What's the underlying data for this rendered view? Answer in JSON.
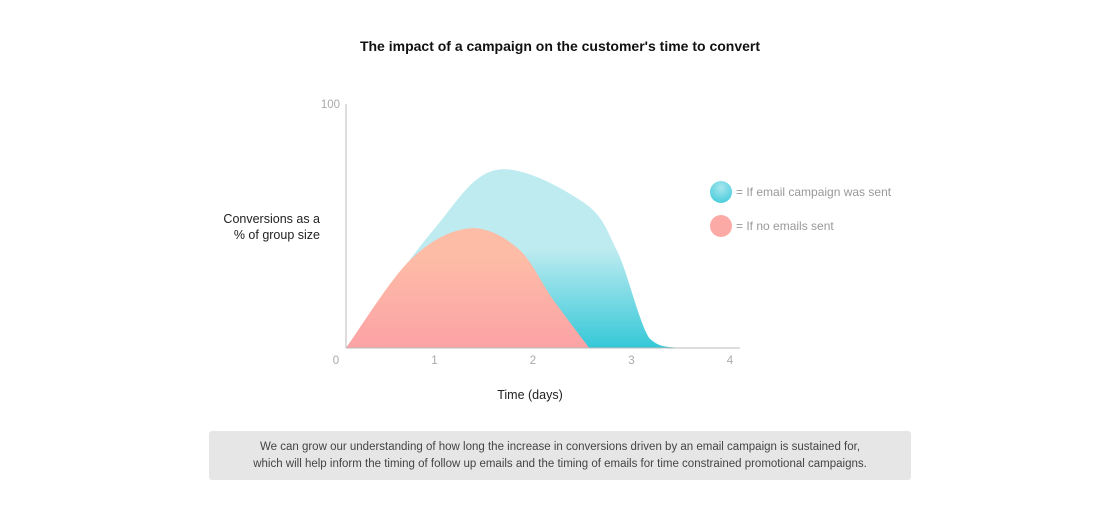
{
  "chart_data": {
    "type": "area",
    "title": "The impact of a campaign on the customer's time to convert",
    "xlabel": "Time (days)",
    "ylabel": "Conversions as a % of group size",
    "ylabel_lines": [
      "Conversions as a",
      "% of group size"
    ],
    "xlim": [
      0,
      4
    ],
    "ylim": [
      0,
      100
    ],
    "x_ticks": [
      "0",
      "1",
      "2",
      "3",
      "4"
    ],
    "y_ticks": [
      "100"
    ],
    "grid": false,
    "legend_position": "right",
    "series": [
      {
        "name": "= If email campaign was sent",
        "color_top": "#bdebf0",
        "color_bottom": "#35c8d8",
        "x": [
          0,
          0.88,
          1.53,
          2.4,
          2.75,
          3.08,
          3.4,
          4
        ],
        "y": [
          0,
          48,
          73,
          60,
          40,
          4,
          0,
          0
        ]
      },
      {
        "name": "= If no emails sent",
        "color_top": "#fdbca6",
        "color_bottom": "#fca2a6",
        "x": [
          0,
          0.65,
          1.24,
          1.74,
          2.1,
          2.47
        ],
        "y": [
          0,
          36,
          49,
          41,
          20,
          0
        ]
      }
    ]
  },
  "note": {
    "lines": [
      "We can grow our understanding of how long the increase in conversions driven by an email campaign is sustained for,",
      "which will help inform the timing of follow up emails and the timing of emails for time constrained promotional campaigns."
    ]
  }
}
